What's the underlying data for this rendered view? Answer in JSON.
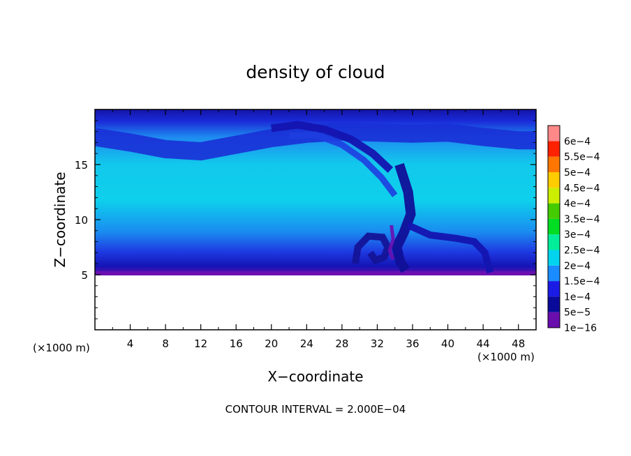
{
  "chart_data": {
    "type": "heatmap",
    "title": "density of cloud",
    "xlabel": "X−coordinate",
    "ylabel": "Z−coordinate",
    "x_unit_note_left": "(×1000 m)",
    "x_unit_note_right": "(×1000 m)",
    "footer": "CONTOUR INTERVAL = 2.000E−04",
    "xlim": [
      0,
      50
    ],
    "ylim": [
      0,
      20
    ],
    "x_ticks": [
      4,
      8,
      12,
      16,
      20,
      24,
      28,
      32,
      36,
      40,
      44,
      48
    ],
    "x_tick_labels": [
      "4",
      "8",
      "12",
      "16",
      "20",
      "24",
      "28",
      "32",
      "36",
      "40",
      "44",
      "48"
    ],
    "y_ticks": [
      5,
      10,
      15
    ],
    "y_tick_labels": [
      "5",
      "10",
      "15"
    ],
    "cloud_base_z": 5,
    "cloud_top_z": 20,
    "colorbar": {
      "levels": [
        "1e−16",
        "5e−5",
        "1e−4",
        "1.5e−4",
        "2e−4",
        "2.5e−4",
        "3e−4",
        "3.5e−4",
        "4e−4",
        "4.5e−4",
        "5e−4",
        "5.5e−4",
        "6e−4"
      ],
      "colors": [
        "#6a0dad",
        "#0a0a9a",
        "#1b1be6",
        "#1a8cff",
        "#00d4ee",
        "#00ee9a",
        "#00dd22",
        "#44cc00",
        "#ccee00",
        "#ffcc00",
        "#ff7700",
        "#ff2200",
        "#ff8888"
      ]
    }
  }
}
